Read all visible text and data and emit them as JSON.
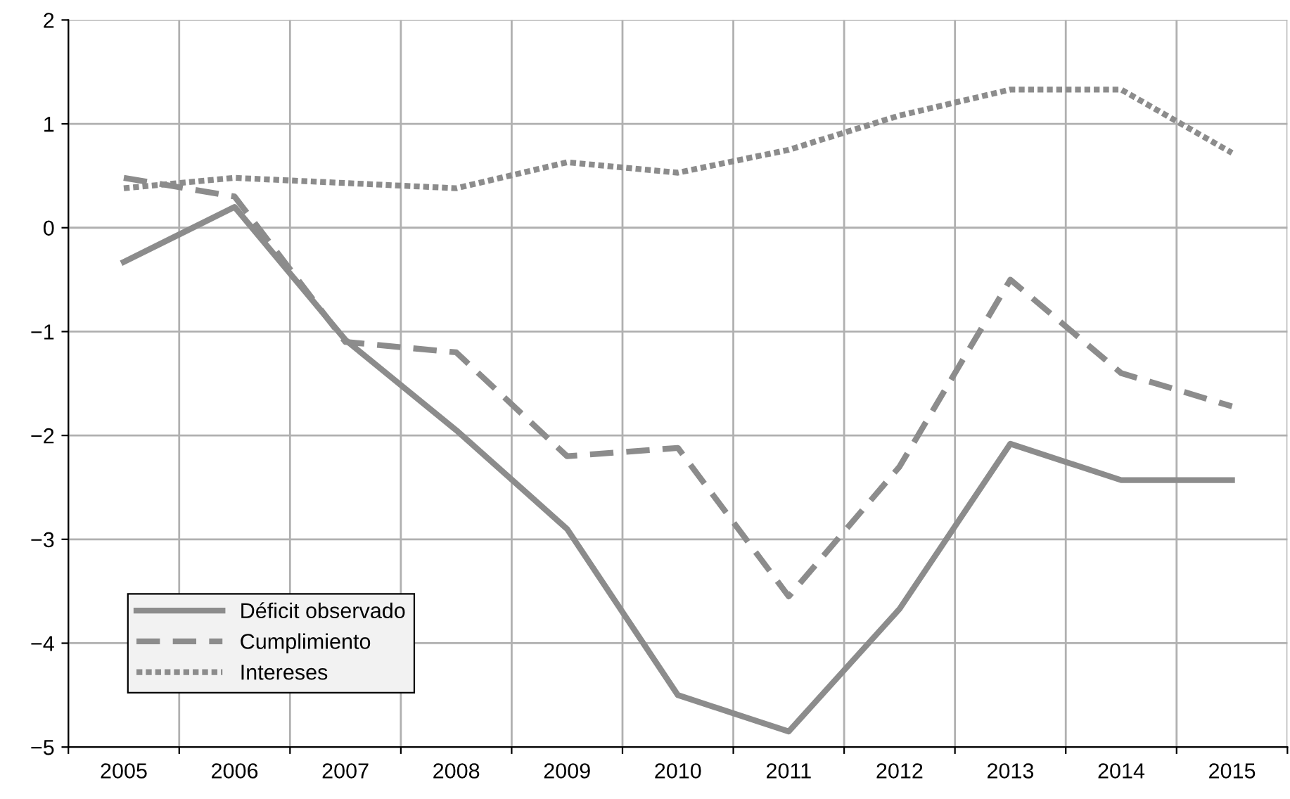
{
  "chart_data": {
    "type": "line",
    "categories": [
      "2005",
      "2006",
      "2007",
      "2008",
      "2009",
      "2010",
      "2011",
      "2012",
      "2013",
      "2014",
      "2015"
    ],
    "ylim": [
      -5,
      2
    ],
    "yticks": [
      {
        "value": -5,
        "label": "−5"
      },
      {
        "value": -4,
        "label": "−4"
      },
      {
        "value": -3,
        "label": "−3"
      },
      {
        "value": -2,
        "label": "−2"
      },
      {
        "value": -1,
        "label": "−1"
      },
      0,
      1,
      2
    ],
    "grid": true,
    "legend": "bottom left",
    "marker": "none",
    "series": [
      {
        "name": "Déficit observado",
        "color": "#8c8c8c",
        "line_style": "solid",
        "values": [
          -0.33,
          0.2,
          -1.08,
          -1.95,
          -2.9,
          -4.5,
          -4.85,
          -3.67,
          -2.08,
          -2.43,
          -2.43
        ]
      },
      {
        "name": "Cumplimiento",
        "color": "#8c8c8c",
        "line_style": "dashed",
        "values": [
          0.48,
          0.3,
          -1.1,
          -1.2,
          -2.2,
          -2.12,
          -3.55,
          -2.3,
          -0.5,
          -1.4,
          -1.72
        ]
      },
      {
        "name": "Intereses",
        "color": "#8c8c8c",
        "line_style": "dotted",
        "values": [
          0.38,
          0.48,
          0.43,
          0.38,
          0.63,
          0.53,
          0.75,
          1.08,
          1.33,
          1.33,
          0.72
        ]
      }
    ]
  }
}
